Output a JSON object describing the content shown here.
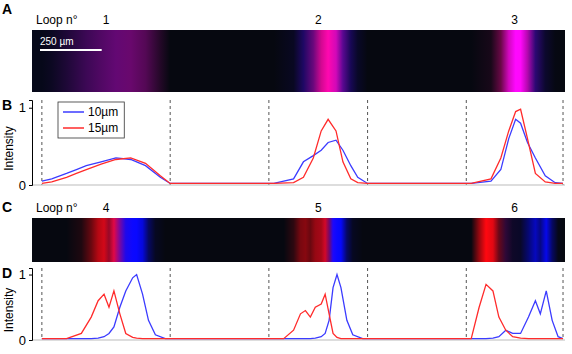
{
  "chart_data": [
    {
      "type": "line",
      "image_panel": "A",
      "panel": "B",
      "image_title": "Loop n°",
      "loops": [
        1,
        2,
        3
      ],
      "scale_bar": {
        "value": 250,
        "label": "250 µm"
      },
      "y_label": "Intensity",
      "xlim": [
        0,
        2160
      ],
      "ylim": [
        0,
        1.1
      ],
      "yticks": [
        0,
        1
      ],
      "tick_labels": "y",
      "legend": "top-left",
      "windows": [
        [
          40,
          560
        ],
        [
          960,
          1360
        ],
        [
          1760,
          2152
        ]
      ],
      "x": [
        40,
        80,
        140,
        180,
        220,
        280,
        340,
        400,
        460,
        520,
        560,
        700,
        860,
        980,
        1060,
        1100,
        1140,
        1172,
        1200,
        1232,
        1260,
        1292,
        1320,
        1360,
        1500,
        1660,
        1780,
        1860,
        1900,
        1932,
        1960,
        1980,
        2008,
        2040,
        2080,
        2120,
        2152
      ],
      "series": [
        {
          "name": "10µm",
          "color": "#3b3bff",
          "values": [
            0.05,
            0.08,
            0.15,
            0.2,
            0.25,
            0.3,
            0.35,
            0.33,
            0.25,
            0.1,
            0.02,
            0.02,
            0.02,
            0.02,
            0.08,
            0.3,
            0.38,
            0.45,
            0.55,
            0.58,
            0.45,
            0.25,
            0.1,
            0.02,
            0.02,
            0.02,
            0.02,
            0.05,
            0.2,
            0.6,
            0.85,
            0.8,
            0.55,
            0.35,
            0.12,
            0.03,
            0.02
          ]
        },
        {
          "name": "15µm",
          "color": "#ff2b2b",
          "values": [
            0.02,
            0.04,
            0.1,
            0.15,
            0.2,
            0.27,
            0.33,
            0.35,
            0.28,
            0.12,
            0.02,
            0.02,
            0.02,
            0.02,
            0.03,
            0.1,
            0.35,
            0.7,
            0.85,
            0.7,
            0.3,
            0.08,
            0.03,
            0.02,
            0.02,
            0.02,
            0.02,
            0.08,
            0.35,
            0.7,
            0.95,
            0.98,
            0.6,
            0.15,
            0.04,
            0.02,
            0.02
          ]
        }
      ]
    },
    {
      "type": "line",
      "image_panel": "C",
      "panel": "D",
      "image_title": "Loop n°",
      "loops": [
        4,
        5,
        6
      ],
      "y_label": "Intensity",
      "xlim": [
        0,
        2160
      ],
      "ylim": [
        0,
        1.1
      ],
      "yticks": [
        0,
        1
      ],
      "tick_labels": "y",
      "windows": [
        [
          40,
          560
        ],
        [
          960,
          1360
        ],
        [
          1760,
          2152
        ]
      ],
      "x": [
        40,
        140,
        200,
        240,
        268,
        292,
        312,
        332,
        356,
        380,
        408,
        424,
        448,
        472,
        500,
        540,
        700,
        860,
        1020,
        1060,
        1088,
        1108,
        1128,
        1148,
        1172,
        1188,
        1204,
        1220,
        1236,
        1252,
        1276,
        1300,
        1340,
        1500,
        1660,
        1780,
        1812,
        1840,
        1868,
        1892,
        1920,
        1948,
        1980,
        2012,
        2040,
        2060,
        2084,
        2108,
        2132,
        2152
      ],
      "series": [
        {
          "color": "#3b3bff",
          "values": [
            0.02,
            0.02,
            0.02,
            0.02,
            0.03,
            0.05,
            0.1,
            0.2,
            0.5,
            0.75,
            0.95,
            1.0,
            0.7,
            0.3,
            0.08,
            0.02,
            0.02,
            0.02,
            0.02,
            0.02,
            0.02,
            0.02,
            0.02,
            0.03,
            0.05,
            0.1,
            0.3,
            0.8,
            1.0,
            0.8,
            0.3,
            0.08,
            0.02,
            0.02,
            0.02,
            0.02,
            0.02,
            0.02,
            0.03,
            0.05,
            0.15,
            0.1,
            0.1,
            0.35,
            0.6,
            0.4,
            0.75,
            0.3,
            0.05,
            0.02
          ]
        },
        {
          "color": "#ff2b2b",
          "values": [
            0.02,
            0.02,
            0.1,
            0.35,
            0.6,
            0.7,
            0.5,
            0.75,
            0.4,
            0.1,
            0.04,
            0.03,
            0.02,
            0.02,
            0.02,
            0.02,
            0.02,
            0.02,
            0.02,
            0.15,
            0.4,
            0.45,
            0.35,
            0.5,
            0.55,
            0.7,
            0.4,
            0.1,
            0.04,
            0.02,
            0.02,
            0.02,
            0.02,
            0.02,
            0.02,
            0.02,
            0.5,
            0.85,
            0.75,
            0.35,
            0.15,
            0.05,
            0.03,
            0.02,
            0.02,
            0.02,
            0.02,
            0.02,
            0.02,
            0.02
          ]
        }
      ]
    }
  ]
}
